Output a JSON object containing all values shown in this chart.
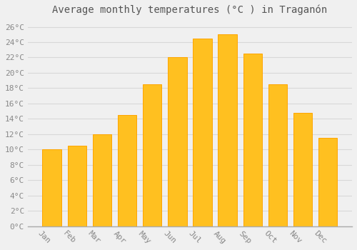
{
  "title": "Average monthly temperatures (°C ) in Traganón",
  "months": [
    "Jan",
    "Feb",
    "Mar",
    "Apr",
    "May",
    "Jun",
    "Jul",
    "Aug",
    "Sep",
    "Oct",
    "Nov",
    "Dec"
  ],
  "values": [
    10.0,
    10.5,
    12.0,
    14.5,
    18.5,
    22.0,
    24.5,
    25.0,
    22.5,
    18.5,
    14.8,
    11.5
  ],
  "bar_color": "#FFC020",
  "bar_edge_color": "#FFA500",
  "ylim": [
    0,
    27
  ],
  "yticks": [
    0,
    2,
    4,
    6,
    8,
    10,
    12,
    14,
    16,
    18,
    20,
    22,
    24,
    26
  ],
  "ytick_labels": [
    "0°C",
    "2°C",
    "4°C",
    "6°C",
    "8°C",
    "10°C",
    "12°C",
    "14°C",
    "16°C",
    "18°C",
    "20°C",
    "22°C",
    "24°C",
    "26°C"
  ],
  "grid_color": "#d8d8d8",
  "background_color": "#f0f0f0",
  "title_fontsize": 10,
  "tick_fontsize": 8,
  "font_family": "monospace",
  "tick_color": "#888888",
  "title_color": "#555555",
  "bar_width": 0.75,
  "xlabel_rotation": -45
}
